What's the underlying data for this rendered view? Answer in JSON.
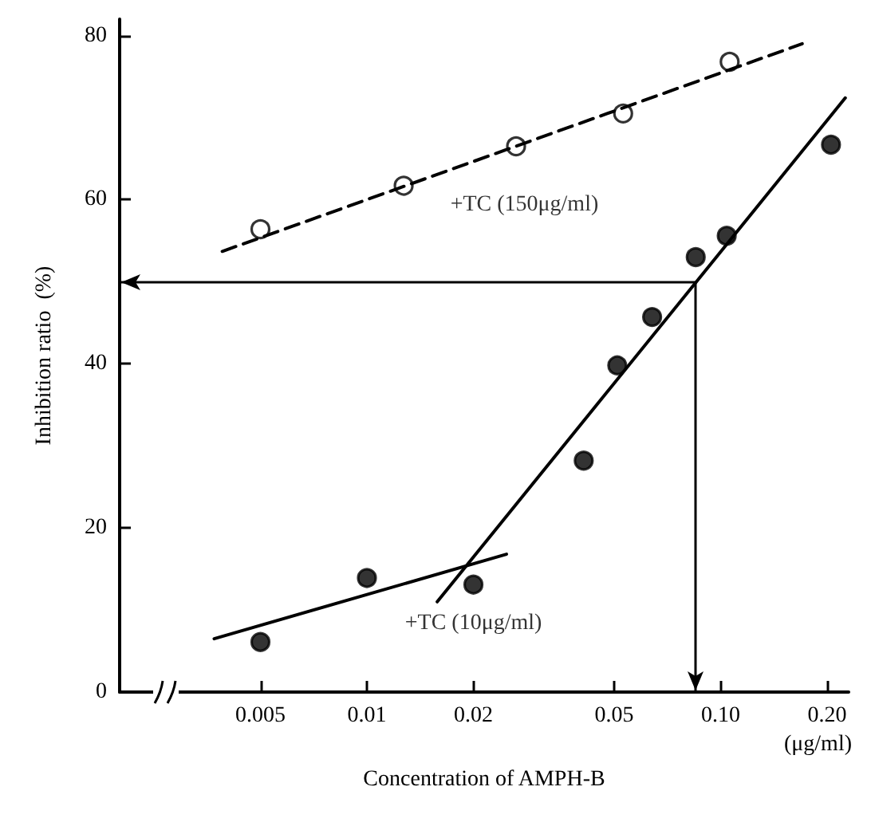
{
  "chart_data": {
    "type": "scatter",
    "xlabel": "Concentration of AMPH-B",
    "ylabel": "Inhibition ratio  (%)",
    "log": "x",
    "xlim": [
      0.002,
      0.23
    ],
    "xticks": [
      0.005,
      0.01,
      0.02,
      0.05,
      {
        "value": 0.1,
        "label": "0.10"
      },
      {
        "value": 0.2,
        "label": "0.20"
      }
    ],
    "ylim": [
      0,
      82
    ],
    "yticks": [
      0,
      20,
      40,
      60,
      80
    ],
    "grid": false,
    "legend": false,
    "annotations": [
      "(μg/ml)"
    ],
    "ref_lines": [
      {
        "axis": "y",
        "value": 50,
        "label": null
      },
      {
        "axis": "x",
        "value": 0.085,
        "label": null
      }
    ],
    "series": [
      {
        "name": "+TC (150μg/ml)",
        "type": "scatter",
        "marker": "circle",
        "color": "#ffffff",
        "x": [
          0.005,
          0.0127,
          0.0264,
          0.053,
          0.106
        ],
        "values": [
          56.4,
          61.7,
          66.5,
          70.5,
          76.8
        ]
      },
      {
        "type": "line",
        "marker": "none",
        "line_style": "dashed",
        "color": "#000000",
        "x": [
          0.0039,
          0.17
        ],
        "values": [
          53.7,
          79
        ]
      },
      {
        "name": "+TC (10μg/ml)",
        "type": "scatter",
        "marker": "circle",
        "color": "#000000",
        "x": [
          0.005,
          0.01,
          0.02,
          0.041,
          0.051,
          0.064,
          0.085,
          0.104,
          0.205
        ],
        "values": [
          6.1,
          13.9,
          13.1,
          28.2,
          39.8,
          45.7,
          53,
          55.6,
          66.7
        ]
      },
      {
        "type": "line",
        "marker": "none",
        "line_style": "solid",
        "color": "#000000",
        "x": [
          0.0037,
          0.0248
        ],
        "values": [
          6.5,
          16.8
        ]
      },
      {
        "type": "line",
        "marker": "none",
        "line_style": "solid",
        "color": "#000000",
        "x": [
          0.0158,
          0.225
        ],
        "values": [
          11,
          72.4
        ]
      }
    ]
  }
}
